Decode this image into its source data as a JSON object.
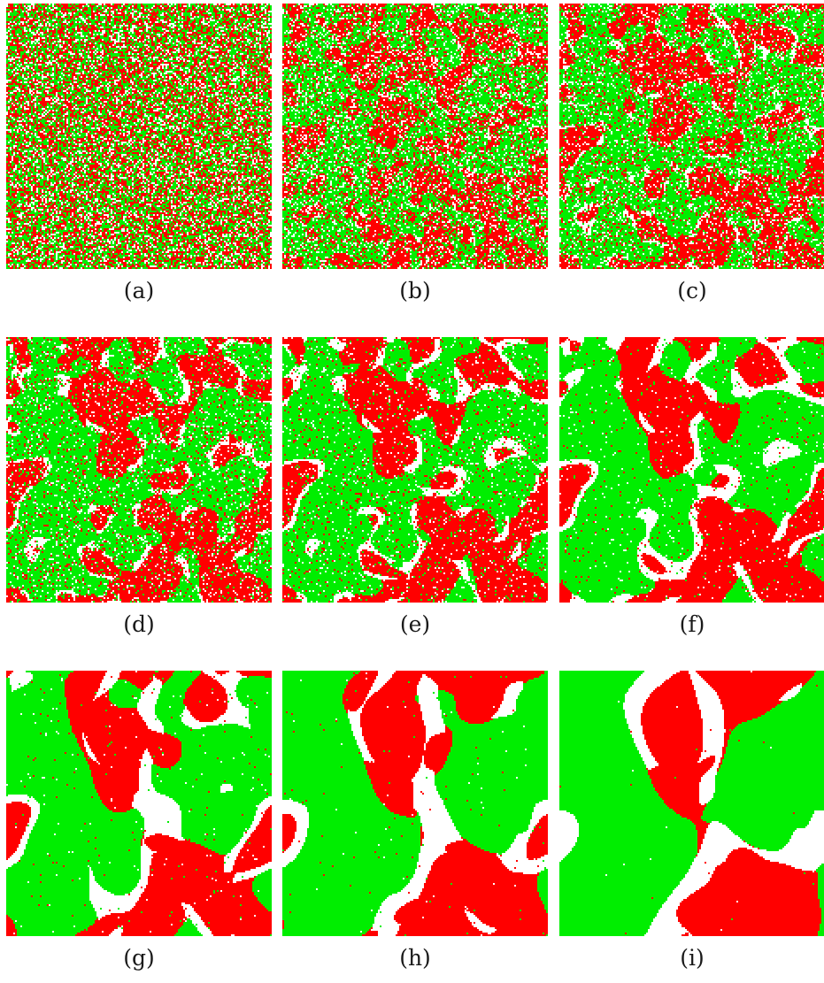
{
  "figure": {
    "colors": {
      "phase_a": "#ff0000",
      "phase_b": "#00ee00",
      "empty": "#ffffff"
    },
    "panels": [
      {
        "label": "(a)",
        "coarsening_stage": 0
      },
      {
        "label": "(b)",
        "coarsening_stage": 1
      },
      {
        "label": "(c)",
        "coarsening_stage": 2
      },
      {
        "label": "(d)",
        "coarsening_stage": 3
      },
      {
        "label": "(e)",
        "coarsening_stage": 4
      },
      {
        "label": "(f)",
        "coarsening_stage": 5
      },
      {
        "label": "(g)",
        "coarsening_stage": 6
      },
      {
        "label": "(h)",
        "coarsening_stage": 7
      },
      {
        "label": "(i)",
        "coarsening_stage": 8
      }
    ]
  }
}
